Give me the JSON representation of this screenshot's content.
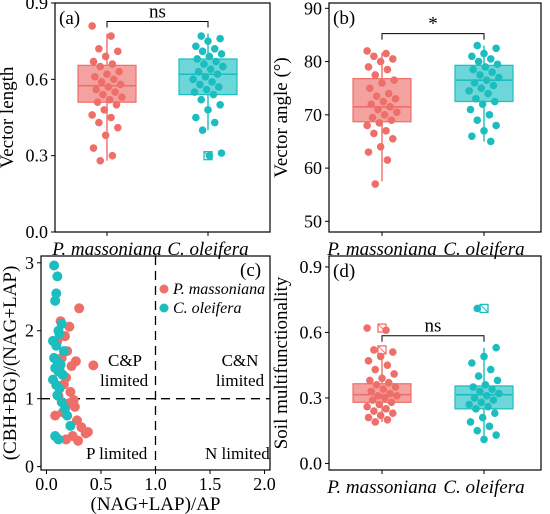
{
  "colors": {
    "pm": "#ee6f6a",
    "co": "#1cbdbf",
    "pm_box": "#f4a29f",
    "co_box": "#6dd6d8",
    "frame": "#000000"
  },
  "chart_data": [
    {
      "id": "a",
      "type": "box",
      "panel_label": "(a)",
      "ylabel": "Vector length",
      "ylim": [
        0,
        0.9
      ],
      "yticks": [
        "0.0",
        "0.3",
        "0.6",
        "0.9"
      ],
      "ytick_values": [
        0,
        0.3,
        0.6,
        0.9
      ],
      "categories": [
        "P. massoniana",
        "C. oleifera"
      ],
      "sig_label": "ns",
      "boxes": [
        {
          "q1": 0.51,
          "median": 0.575,
          "q3": 0.655,
          "whisker_low": 0.28,
          "whisker_high": 0.78
        },
        {
          "q1": 0.54,
          "median": 0.62,
          "q3": 0.68,
          "whisker_low": 0.4,
          "whisker_high": 0.78
        }
      ],
      "outliers": [
        [],
        [
          0.3
        ]
      ],
      "points": [
        [
          0.81,
          0.77,
          0.72,
          0.71,
          0.69,
          0.67,
          0.66,
          0.65,
          0.63,
          0.62,
          0.61,
          0.6,
          0.59,
          0.58,
          0.57,
          0.56,
          0.55,
          0.54,
          0.53,
          0.52,
          0.51,
          0.5,
          0.48,
          0.46,
          0.45,
          0.43,
          0.41,
          0.38,
          0.33,
          0.3,
          0.28
        ],
        [
          0.77,
          0.76,
          0.75,
          0.73,
          0.72,
          0.71,
          0.7,
          0.69,
          0.68,
          0.67,
          0.66,
          0.65,
          0.64,
          0.63,
          0.62,
          0.61,
          0.6,
          0.59,
          0.58,
          0.57,
          0.56,
          0.55,
          0.54,
          0.52,
          0.5,
          0.48,
          0.45,
          0.43,
          0.4,
          0.31,
          0.3
        ]
      ]
    },
    {
      "id": "b",
      "type": "box",
      "panel_label": "(b)",
      "ylabel": "Vector angle (°)",
      "ylim": [
        48,
        91
      ],
      "yticks": [
        "50",
        "60",
        "70",
        "80",
        "90"
      ],
      "ytick_values": [
        50,
        60,
        70,
        80,
        90
      ],
      "categories": [
        "P. massoniana",
        "C. oleifera"
      ],
      "sig_label": "*",
      "boxes": [
        {
          "q1": 68.7,
          "median": 71.5,
          "q3": 76.8,
          "whisker_low": 57.5,
          "whisker_high": 81.7
        },
        {
          "q1": 72.5,
          "median": 76.5,
          "q3": 79.3,
          "whisker_low": 65.0,
          "whisker_high": 83.0
        }
      ],
      "outliers": [
        [],
        []
      ],
      "points": [
        [
          82.0,
          81.5,
          81.0,
          80.5,
          80.0,
          79.0,
          78.5,
          77.5,
          76.5,
          76.0,
          75.0,
          74.0,
          73.5,
          73.0,
          72.5,
          72.0,
          71.5,
          71.0,
          70.5,
          70.0,
          69.5,
          69.0,
          68.5,
          68.0,
          67.0,
          66.5,
          65.5,
          64.0,
          63.0,
          61.5,
          57.0
        ],
        [
          83.0,
          82.5,
          81.5,
          81.0,
          80.5,
          80.0,
          79.5,
          79.0,
          78.5,
          78.0,
          77.5,
          77.0,
          76.5,
          76.0,
          75.5,
          75.0,
          74.5,
          74.0,
          73.0,
          72.5,
          72.0,
          71.0,
          70.0,
          69.0,
          68.0,
          67.0,
          66.0,
          65.0
        ]
      ]
    },
    {
      "id": "c",
      "type": "scatter",
      "panel_label": "(c)",
      "xlabel": "(NAG+LAP)/AP",
      "ylabel": "(CBH+BG)/(NAG+LAP)",
      "xlim": [
        -0.05,
        2.05
      ],
      "ylim": [
        -0.05,
        3.1
      ],
      "xticks": [
        "0.0",
        "0.5",
        "1.0",
        "1.5",
        "2.0"
      ],
      "xtick_values": [
        0,
        0.5,
        1.0,
        1.5,
        2.0
      ],
      "yticks": [
        "0",
        "1",
        "2",
        "3"
      ],
      "ytick_values": [
        0,
        1,
        2,
        3
      ],
      "series": [
        {
          "name": "P. massoniana",
          "x": [
            0.13,
            0.3,
            0.21,
            0.17,
            0.1,
            0.19,
            0.14,
            0.27,
            0.23,
            0.12,
            0.43,
            0.18,
            0.16,
            0.22,
            0.11,
            0.25,
            0.2,
            0.26,
            0.15,
            0.08,
            0.28,
            0.32,
            0.36,
            0.38,
            0.24,
            0.18,
            0.29
          ],
          "y": [
            2.14,
            2.33,
            2.06,
            1.92,
            1.85,
            1.7,
            1.6,
            1.55,
            1.48,
            1.43,
            1.49,
            1.31,
            1.21,
            1.1,
            1.04,
            0.98,
            0.93,
            0.88,
            0.8,
            0.75,
            0.68,
            0.58,
            0.49,
            0.51,
            0.45,
            0.4,
            0.38
          ]
        },
        {
          "name": "C. oleifera",
          "x": [
            0.07,
            0.1,
            0.09,
            0.08,
            0.14,
            0.11,
            0.12,
            0.06,
            0.09,
            0.16,
            0.07,
            0.1,
            0.13,
            0.08,
            0.11,
            0.15,
            0.06,
            0.09,
            0.12,
            0.1,
            0.14,
            0.17,
            0.19,
            0.22,
            0.08,
            0.11
          ],
          "y": [
            2.96,
            2.8,
            2.55,
            2.44,
            2.1,
            2.0,
            1.95,
            1.85,
            1.78,
            1.7,
            1.6,
            1.55,
            1.5,
            1.45,
            1.4,
            1.35,
            1.28,
            1.2,
            1.15,
            1.05,
            0.95,
            0.85,
            0.75,
            0.6,
            0.45,
            0.4
          ]
        }
      ],
      "reference_lines": {
        "vertical_x": 1.0,
        "horizontal_y": 1.0
      },
      "annotations": [
        "C&P",
        "limited",
        "C&N",
        "limited",
        "P limited",
        "N limited"
      ],
      "legend_position": "top-right"
    },
    {
      "id": "d",
      "type": "box",
      "panel_label": "(d)",
      "ylabel": "Soil multifunctionality",
      "ylim": [
        -0.03,
        0.95
      ],
      "yticks": [
        "0.0",
        "0.3",
        "0.6",
        "0.9"
      ],
      "ytick_values": [
        0,
        0.3,
        0.6,
        0.9
      ],
      "categories": [
        "P. massoniana",
        "C. oleifera"
      ],
      "sig_label": "ns",
      "boxes": [
        {
          "q1": 0.28,
          "median": 0.315,
          "q3": 0.365,
          "whisker_low": 0.19,
          "whisker_high": 0.49
        },
        {
          "q1": 0.25,
          "median": 0.315,
          "q3": 0.355,
          "whisker_low": 0.1,
          "whisker_high": 0.53
        }
      ],
      "outliers": [
        [
          0.62,
          0.52
        ],
        [
          0.71
        ]
      ],
      "points": [
        [
          0.62,
          0.61,
          0.52,
          0.51,
          0.49,
          0.47,
          0.45,
          0.43,
          0.41,
          0.39,
          0.38,
          0.37,
          0.36,
          0.35,
          0.34,
          0.33,
          0.32,
          0.31,
          0.31,
          0.3,
          0.29,
          0.28,
          0.27,
          0.26,
          0.25,
          0.24,
          0.23,
          0.22,
          0.21,
          0.2,
          0.19
        ],
        [
          0.71,
          0.53,
          0.49,
          0.46,
          0.43,
          0.4,
          0.38,
          0.36,
          0.35,
          0.34,
          0.33,
          0.32,
          0.31,
          0.3,
          0.29,
          0.28,
          0.27,
          0.26,
          0.25,
          0.23,
          0.21,
          0.19,
          0.17,
          0.15,
          0.13,
          0.11
        ]
      ]
    }
  ]
}
